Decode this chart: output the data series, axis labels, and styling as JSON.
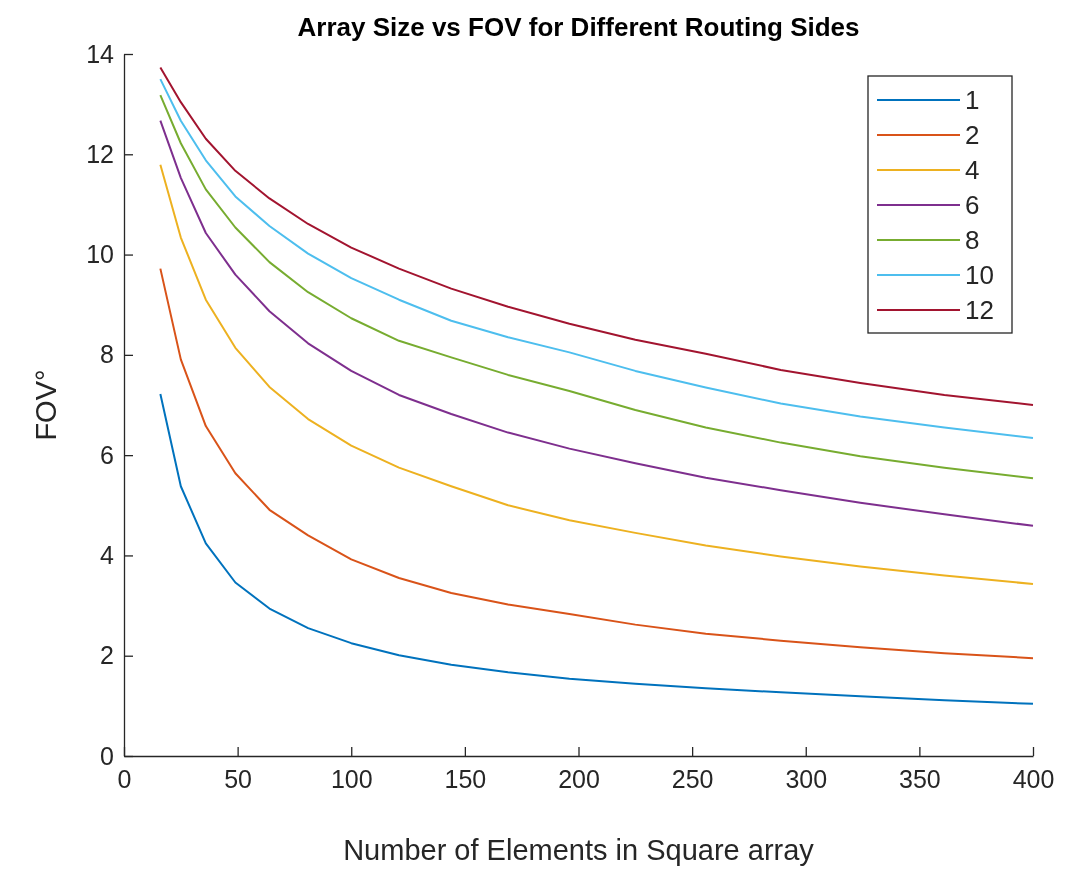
{
  "chart_data": {
    "type": "line",
    "title": "Array Size vs FOV for Different Routing Sides",
    "xlabel": "Number of Elements in Square array",
    "ylabel": "FOV°",
    "x": [
      16,
      25,
      36,
      49,
      64,
      81,
      100,
      121,
      144,
      169,
      196,
      225,
      256,
      289,
      324,
      361,
      400
    ],
    "series": [
      {
        "name": "1",
        "color": "#0072bd",
        "values": [
          7.22,
          5.38,
          4.24,
          3.46,
          2.94,
          2.55,
          2.25,
          2.01,
          1.82,
          1.67,
          1.54,
          1.44,
          1.35,
          1.27,
          1.19,
          1.11,
          1.04
        ]
      },
      {
        "name": "2",
        "color": "#d95319",
        "values": [
          9.72,
          7.91,
          6.58,
          5.64,
          4.91,
          4.4,
          3.92,
          3.55,
          3.25,
          3.02,
          2.83,
          2.62,
          2.44,
          2.3,
          2.17,
          2.05,
          1.95
        ]
      },
      {
        "name": "4",
        "color": "#edb120",
        "values": [
          11.79,
          10.34,
          9.1,
          8.14,
          7.36,
          6.72,
          6.19,
          5.75,
          5.38,
          5.0,
          4.7,
          4.45,
          4.2,
          3.98,
          3.78,
          3.6,
          3.43
        ]
      },
      {
        "name": "6",
        "color": "#7e2f8e",
        "values": [
          12.67,
          11.53,
          10.43,
          9.6,
          8.87,
          8.23,
          7.68,
          7.2,
          6.82,
          6.45,
          6.13,
          5.84,
          5.55,
          5.3,
          5.05,
          4.82,
          4.59
        ]
      },
      {
        "name": "8",
        "color": "#77ac30",
        "values": [
          13.18,
          12.22,
          11.3,
          10.54,
          9.85,
          9.25,
          8.73,
          8.28,
          7.95,
          7.6,
          7.28,
          6.9,
          6.55,
          6.25,
          5.98,
          5.75,
          5.54
        ]
      },
      {
        "name": "10",
        "color": "#4dbeee",
        "values": [
          13.5,
          12.67,
          11.88,
          11.16,
          10.57,
          10.02,
          9.53,
          9.1,
          8.68,
          8.35,
          8.05,
          7.68,
          7.35,
          7.03,
          6.77,
          6.55,
          6.34
        ]
      },
      {
        "name": "12",
        "color": "#a2142f",
        "values": [
          13.73,
          13.04,
          12.31,
          11.67,
          11.12,
          10.61,
          10.14,
          9.72,
          9.32,
          8.96,
          8.62,
          8.3,
          8.02,
          7.7,
          7.44,
          7.2,
          7.0
        ]
      }
    ],
    "xlim": [
      0,
      400
    ],
    "xticks": [
      0,
      50,
      100,
      150,
      200,
      250,
      300,
      350,
      400
    ],
    "ylim": [
      0,
      14
    ],
    "yticks": [
      0,
      2,
      4,
      6,
      8,
      10,
      12,
      14
    ],
    "legend": "top right"
  }
}
